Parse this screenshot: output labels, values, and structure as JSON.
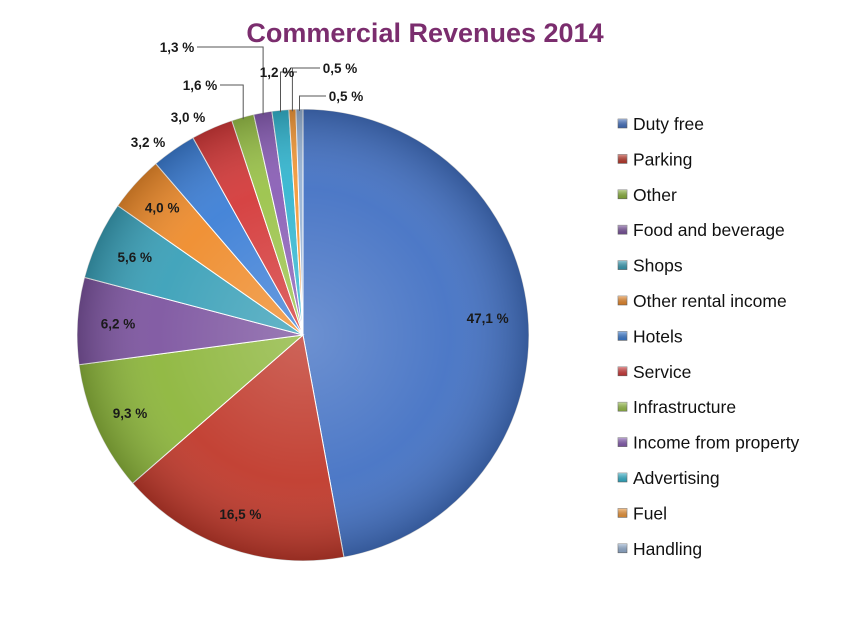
{
  "chart_data": {
    "type": "pie",
    "title": "Commercial Revenues 2014",
    "title_color": "#7b2d6e",
    "legend_position": "right",
    "slices": [
      {
        "name": "Duty free",
        "value": 47.1,
        "label": "47,1 %",
        "color": "#4472c4"
      },
      {
        "name": "Parking",
        "value": 16.5,
        "label": "16,5 %",
        "color": "#c0392b"
      },
      {
        "name": "Other",
        "value": 9.3,
        "label": "9,3 %",
        "color": "#8db63c"
      },
      {
        "name": "Food and beverage",
        "value": 6.2,
        "label": "6,2 %",
        "color": "#7d55a0"
      },
      {
        "name": "Shops",
        "value": 5.6,
        "label": "5,6 %",
        "color": "#3aa0b8"
      },
      {
        "name": "Other rental income",
        "value": 4.0,
        "label": "4,0 %",
        "color": "#ef8c2c"
      },
      {
        "name": "Hotels",
        "value": 3.2,
        "label": "3,2 %",
        "color": "#3d7fd6"
      },
      {
        "name": "Service",
        "value": 3.0,
        "label": "3,0 %",
        "color": "#d43a3a"
      },
      {
        "name": "Infrastructure",
        "value": 1.6,
        "label": "1,6 %",
        "color": "#9bc34a"
      },
      {
        "name": "Income from property",
        "value": 1.3,
        "label": "1,3 %",
        "color": "#8a5fb6"
      },
      {
        "name": "Advertising",
        "value": 1.2,
        "label": "1,2 %",
        "color": "#34b6d0"
      },
      {
        "name": "Fuel",
        "value": 0.5,
        "label": "0,5 %",
        "color": "#f49a3a"
      },
      {
        "name": "Handling",
        "value": 0.5,
        "label": "0,5 %",
        "color": "#97b3d6"
      }
    ]
  }
}
